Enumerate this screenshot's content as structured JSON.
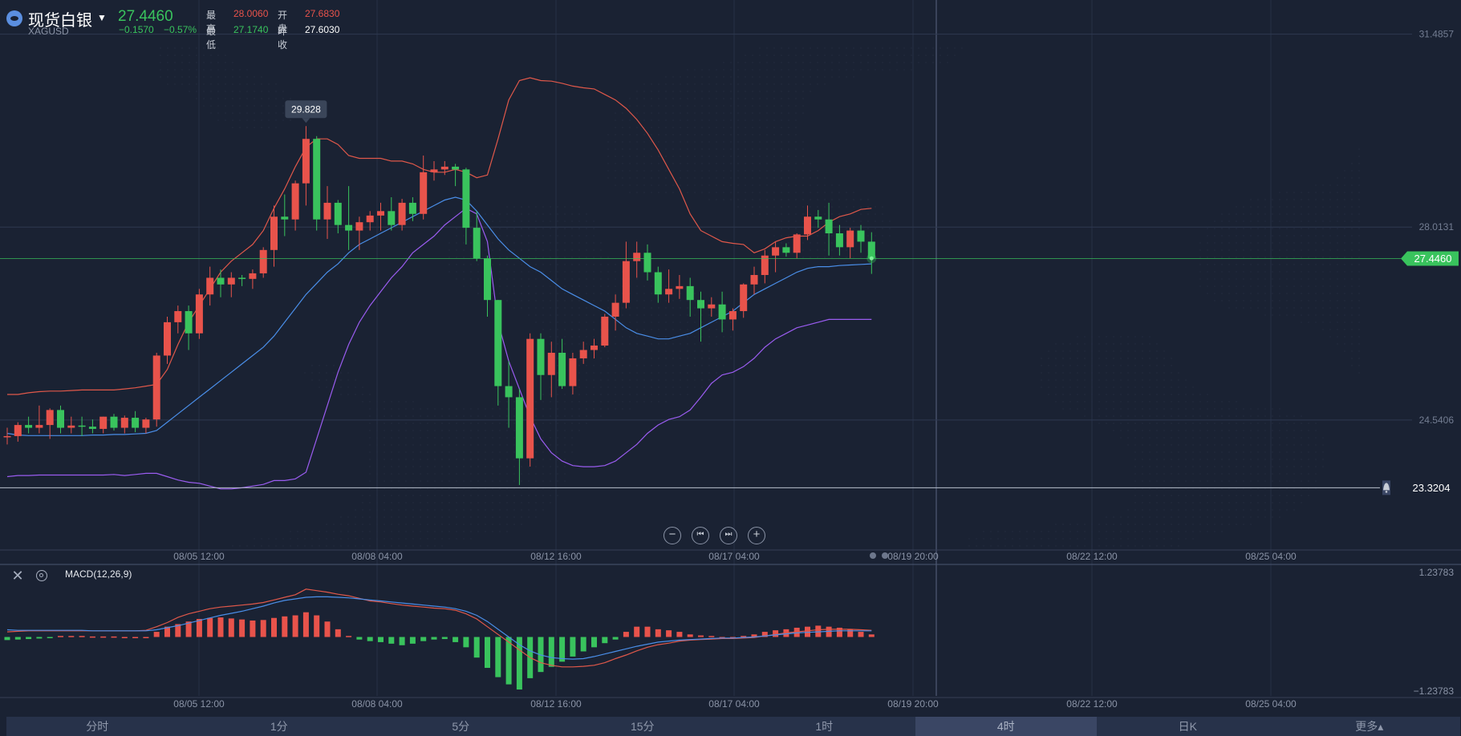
{
  "header": {
    "name": "现货白银",
    "code": "XAGUSD",
    "price": "27.4460",
    "change": "−0.1570",
    "change_pct": "−0.57%",
    "high_label": "最高",
    "high": "28.0060",
    "open_label": "开盘",
    "open": "27.6830",
    "low_label": "最低",
    "low": "27.1740",
    "prev_close_label": "昨收",
    "prev_close": "27.6030"
  },
  "price_axis": {
    "ticks": [
      "31.4857",
      "28.0131",
      "24.5406"
    ],
    "current_price_tag": "27.4460",
    "alert_line_value": "23.3204"
  },
  "peak_tooltip": "29.828",
  "time_axis": {
    "labels": [
      "08/05 12:00",
      "08/08 04:00",
      "08/12 16:00",
      "08/17 04:00",
      "08/19 20:00",
      "08/22 12:00",
      "08/25 04:00"
    ]
  },
  "macd": {
    "title": "MACD(12,26,9)",
    "axis_top": "1.23783",
    "axis_bottom": "−1.23783"
  },
  "controls": {
    "zoom_out_icon": "minus-circle-icon",
    "prev_icon": "skip-back-icon",
    "next_icon": "skip-forward-icon",
    "zoom_in_icon": "plus-circle-icon"
  },
  "tabs": [
    {
      "label": "分时",
      "active": false
    },
    {
      "label": "1分",
      "active": false
    },
    {
      "label": "5分",
      "active": false
    },
    {
      "label": "15分",
      "active": false
    },
    {
      "label": "1时",
      "active": false
    },
    {
      "label": "4时",
      "active": true
    },
    {
      "label": "日K",
      "active": false
    },
    {
      "label": "更多▴",
      "active": false
    }
  ],
  "colors": {
    "up": "#e8534b",
    "down": "#39c35d",
    "upper_band": "#e0584a",
    "middle_band": "#4a8ee8",
    "lower_band": "#9a5cf0",
    "background": "#1a2233"
  },
  "chart_data": {
    "type": "candlestick",
    "symbol": "XAGUSD",
    "interval": "4时",
    "x_labels": [
      "08/05 12:00",
      "08/08 04:00",
      "08/12 16:00",
      "08/17 04:00",
      "08/19 20:00",
      "08/22 12:00",
      "08/25 04:00"
    ],
    "y_range": [
      22.2,
      32.1
    ],
    "y_ticks": [
      31.4857,
      28.0131,
      24.5406
    ],
    "candles": [
      {
        "o": 24.23,
        "h": 24.4,
        "l": 24.1,
        "c": 24.25
      },
      {
        "o": 24.25,
        "h": 24.5,
        "l": 24.15,
        "c": 24.45
      },
      {
        "o": 24.45,
        "h": 24.6,
        "l": 24.3,
        "c": 24.4
      },
      {
        "o": 24.4,
        "h": 24.8,
        "l": 24.3,
        "c": 24.45
      },
      {
        "o": 24.45,
        "h": 24.75,
        "l": 24.2,
        "c": 24.72
      },
      {
        "o": 24.72,
        "h": 24.8,
        "l": 24.3,
        "c": 24.4
      },
      {
        "o": 24.4,
        "h": 24.6,
        "l": 24.3,
        "c": 24.44
      },
      {
        "o": 24.44,
        "h": 24.6,
        "l": 24.25,
        "c": 24.42
      },
      {
        "o": 24.42,
        "h": 24.55,
        "l": 24.3,
        "c": 24.38
      },
      {
        "o": 24.38,
        "h": 24.6,
        "l": 24.3,
        "c": 24.6
      },
      {
        "o": 24.6,
        "h": 24.65,
        "l": 24.35,
        "c": 24.4
      },
      {
        "o": 24.4,
        "h": 24.62,
        "l": 24.3,
        "c": 24.58
      },
      {
        "o": 24.58,
        "h": 24.7,
        "l": 24.32,
        "c": 24.4
      },
      {
        "o": 24.4,
        "h": 24.58,
        "l": 24.3,
        "c": 24.55
      },
      {
        "o": 24.55,
        "h": 25.75,
        "l": 24.42,
        "c": 25.7
      },
      {
        "o": 25.7,
        "h": 26.4,
        "l": 25.55,
        "c": 26.3
      },
      {
        "o": 26.3,
        "h": 26.6,
        "l": 26.1,
        "c": 26.5
      },
      {
        "o": 26.5,
        "h": 26.6,
        "l": 25.8,
        "c": 26.1
      },
      {
        "o": 26.1,
        "h": 26.9,
        "l": 26.0,
        "c": 26.8
      },
      {
        "o": 26.8,
        "h": 27.3,
        "l": 26.6,
        "c": 27.1
      },
      {
        "o": 27.1,
        "h": 27.25,
        "l": 26.75,
        "c": 26.98
      },
      {
        "o": 26.98,
        "h": 27.2,
        "l": 26.75,
        "c": 27.1
      },
      {
        "o": 27.1,
        "h": 27.15,
        "l": 26.95,
        "c": 27.08
      },
      {
        "o": 27.08,
        "h": 27.25,
        "l": 26.9,
        "c": 27.18
      },
      {
        "o": 27.18,
        "h": 27.65,
        "l": 27.1,
        "c": 27.6
      },
      {
        "o": 27.6,
        "h": 28.4,
        "l": 27.3,
        "c": 28.2
      },
      {
        "o": 28.2,
        "h": 28.6,
        "l": 27.85,
        "c": 28.15
      },
      {
        "o": 28.15,
        "h": 28.85,
        "l": 27.95,
        "c": 28.8
      },
      {
        "o": 28.8,
        "h": 29.83,
        "l": 28.4,
        "c": 29.6
      },
      {
        "o": 29.6,
        "h": 29.65,
        "l": 27.95,
        "c": 28.15
      },
      {
        "o": 28.15,
        "h": 28.75,
        "l": 27.8,
        "c": 28.45
      },
      {
        "o": 28.45,
        "h": 28.5,
        "l": 27.9,
        "c": 28.05
      },
      {
        "o": 28.05,
        "h": 28.75,
        "l": 27.6,
        "c": 27.95
      },
      {
        "o": 27.95,
        "h": 28.2,
        "l": 27.6,
        "c": 28.1
      },
      {
        "o": 28.1,
        "h": 28.3,
        "l": 27.95,
        "c": 28.22
      },
      {
        "o": 28.22,
        "h": 28.45,
        "l": 27.95,
        "c": 28.3
      },
      {
        "o": 28.3,
        "h": 28.55,
        "l": 27.95,
        "c": 28.05
      },
      {
        "o": 28.05,
        "h": 28.52,
        "l": 27.95,
        "c": 28.45
      },
      {
        "o": 28.45,
        "h": 28.55,
        "l": 28.12,
        "c": 28.25
      },
      {
        "o": 28.25,
        "h": 29.3,
        "l": 28.15,
        "c": 29.0
      },
      {
        "o": 29.0,
        "h": 29.2,
        "l": 28.85,
        "c": 29.05
      },
      {
        "o": 29.05,
        "h": 29.2,
        "l": 28.95,
        "c": 29.1
      },
      {
        "o": 29.1,
        "h": 29.15,
        "l": 28.75,
        "c": 29.05
      },
      {
        "o": 29.05,
        "h": 29.08,
        "l": 27.7,
        "c": 28.0
      },
      {
        "o": 28.0,
        "h": 28.3,
        "l": 27.4,
        "c": 27.45
      },
      {
        "o": 27.45,
        "h": 27.5,
        "l": 26.4,
        "c": 26.7
      },
      {
        "o": 26.7,
        "h": 26.7,
        "l": 24.8,
        "c": 25.15
      },
      {
        "o": 25.15,
        "h": 25.6,
        "l": 24.4,
        "c": 24.95
      },
      {
        "o": 24.95,
        "h": 25.1,
        "l": 23.37,
        "c": 23.85
      },
      {
        "o": 23.85,
        "h": 26.1,
        "l": 23.7,
        "c": 26.0
      },
      {
        "o": 26.0,
        "h": 26.1,
        "l": 24.9,
        "c": 25.35
      },
      {
        "o": 25.35,
        "h": 25.95,
        "l": 24.95,
        "c": 25.75
      },
      {
        "o": 25.75,
        "h": 26.0,
        "l": 25.1,
        "c": 25.15
      },
      {
        "o": 25.15,
        "h": 25.75,
        "l": 25.0,
        "c": 25.65
      },
      {
        "o": 25.65,
        "h": 25.95,
        "l": 25.55,
        "c": 25.8
      },
      {
        "o": 25.8,
        "h": 26.0,
        "l": 25.65,
        "c": 25.88
      },
      {
        "o": 25.88,
        "h": 26.45,
        "l": 25.85,
        "c": 26.4
      },
      {
        "o": 26.4,
        "h": 26.8,
        "l": 26.15,
        "c": 26.65
      },
      {
        "o": 26.65,
        "h": 27.75,
        "l": 26.55,
        "c": 27.4
      },
      {
        "o": 27.4,
        "h": 27.75,
        "l": 27.1,
        "c": 27.55
      },
      {
        "o": 27.55,
        "h": 27.7,
        "l": 27.05,
        "c": 27.2
      },
      {
        "o": 27.2,
        "h": 27.3,
        "l": 26.65,
        "c": 26.8
      },
      {
        "o": 26.8,
        "h": 27.25,
        "l": 26.65,
        "c": 26.9
      },
      {
        "o": 26.9,
        "h": 27.15,
        "l": 26.72,
        "c": 26.95
      },
      {
        "o": 26.95,
        "h": 27.1,
        "l": 26.4,
        "c": 26.7
      },
      {
        "o": 26.7,
        "h": 26.85,
        "l": 25.95,
        "c": 26.55
      },
      {
        "o": 26.55,
        "h": 26.75,
        "l": 26.4,
        "c": 26.62
      },
      {
        "o": 26.62,
        "h": 26.85,
        "l": 26.12,
        "c": 26.35
      },
      {
        "o": 26.35,
        "h": 26.55,
        "l": 26.15,
        "c": 26.5
      },
      {
        "o": 26.5,
        "h": 27.0,
        "l": 26.38,
        "c": 26.98
      },
      {
        "o": 26.98,
        "h": 27.3,
        "l": 26.8,
        "c": 27.15
      },
      {
        "o": 27.15,
        "h": 27.6,
        "l": 27.0,
        "c": 27.5
      },
      {
        "o": 27.5,
        "h": 27.75,
        "l": 27.2,
        "c": 27.65
      },
      {
        "o": 27.65,
        "h": 27.72,
        "l": 27.48,
        "c": 27.55
      },
      {
        "o": 27.55,
        "h": 27.9,
        "l": 27.45,
        "c": 27.88
      },
      {
        "o": 27.88,
        "h": 28.4,
        "l": 27.78,
        "c": 28.2
      },
      {
        "o": 28.2,
        "h": 28.32,
        "l": 28.0,
        "c": 28.15
      },
      {
        "o": 28.15,
        "h": 28.45,
        "l": 27.5,
        "c": 27.9
      },
      {
        "o": 27.9,
        "h": 28.05,
        "l": 27.5,
        "c": 27.65
      },
      {
        "o": 27.65,
        "h": 28.0,
        "l": 27.45,
        "c": 27.95
      },
      {
        "o": 27.95,
        "h": 28.05,
        "l": 27.55,
        "c": 27.75
      },
      {
        "o": 27.75,
        "h": 27.92,
        "l": 27.17,
        "c": 27.45
      }
    ],
    "bollinger": {
      "upper": [
        25.0,
        25.0,
        25.03,
        25.05,
        25.06,
        25.06,
        25.07,
        25.08,
        25.08,
        25.08,
        25.08,
        25.1,
        25.12,
        25.15,
        25.18,
        25.45,
        25.9,
        26.3,
        26.6,
        26.9,
        27.2,
        27.4,
        27.55,
        27.7,
        27.95,
        28.35,
        28.7,
        29.1,
        29.45,
        29.6,
        29.6,
        29.5,
        29.3,
        29.25,
        29.25,
        29.25,
        29.2,
        29.2,
        29.15,
        29.05,
        29.0,
        29.0,
        29.05,
        29.0,
        28.9,
        28.95,
        29.6,
        30.3,
        30.65,
        30.7,
        30.65,
        30.64,
        30.6,
        30.55,
        30.52,
        30.5,
        30.4,
        30.3,
        30.15,
        29.95,
        29.7,
        29.4,
        29.05,
        28.7,
        28.25,
        27.95,
        27.85,
        27.75,
        27.72,
        27.7,
        27.55,
        27.62,
        27.75,
        27.82,
        27.85,
        27.85,
        27.95,
        28.1,
        28.2,
        28.25,
        28.33,
        28.35
      ],
      "middle": [
        24.3,
        24.27,
        24.26,
        24.26,
        24.26,
        24.26,
        24.26,
        24.26,
        24.27,
        24.27,
        24.28,
        24.28,
        24.29,
        24.3,
        24.35,
        24.5,
        24.65,
        24.8,
        24.95,
        25.1,
        25.25,
        25.4,
        25.55,
        25.7,
        25.85,
        26.05,
        26.3,
        26.55,
        26.8,
        27.0,
        27.2,
        27.35,
        27.55,
        27.7,
        27.8,
        27.9,
        28.0,
        28.1,
        28.2,
        28.3,
        28.4,
        28.5,
        28.55,
        28.5,
        28.3,
        28.05,
        27.8,
        27.6,
        27.45,
        27.3,
        27.2,
        27.05,
        26.9,
        26.8,
        26.7,
        26.6,
        26.5,
        26.35,
        26.2,
        26.1,
        26.05,
        26.0,
        26.0,
        26.05,
        26.1,
        26.2,
        26.3,
        26.4,
        26.5,
        26.65,
        26.8,
        26.9,
        27.0,
        27.1,
        27.2,
        27.27,
        27.3,
        27.3,
        27.32,
        27.33,
        27.34,
        27.35
      ],
      "lower": [
        23.52,
        23.54,
        23.54,
        23.55,
        23.55,
        23.55,
        23.55,
        23.55,
        23.55,
        23.55,
        23.56,
        23.54,
        23.56,
        23.58,
        23.58,
        23.52,
        23.46,
        23.42,
        23.4,
        23.35,
        23.3,
        23.3,
        23.32,
        23.35,
        23.38,
        23.45,
        23.45,
        23.48,
        23.6,
        24.2,
        24.8,
        25.4,
        25.9,
        26.3,
        26.6,
        26.85,
        27.1,
        27.3,
        27.55,
        27.7,
        27.85,
        28.05,
        28.2,
        28.35,
        28.25,
        27.75,
        26.3,
        25.6,
        25.1,
        24.6,
        24.2,
        23.95,
        23.8,
        23.72,
        23.7,
        23.7,
        23.72,
        23.8,
        23.95,
        24.1,
        24.3,
        24.45,
        24.55,
        24.6,
        24.72,
        24.95,
        25.2,
        25.35,
        25.4,
        25.5,
        25.65,
        25.85,
        26.0,
        26.1,
        26.2,
        26.25,
        26.3,
        26.35,
        26.35,
        26.35,
        26.35,
        26.35
      ]
    },
    "macd": {
      "y_range": [
        -1.23783,
        1.23783
      ],
      "histogram": [
        -0.06,
        -0.05,
        -0.04,
        -0.03,
        -0.02,
        0.02,
        0.02,
        0.02,
        0.01,
        0.01,
        0.01,
        0.0,
        0.0,
        0.0,
        0.1,
        0.2,
        0.25,
        0.3,
        0.35,
        0.37,
        0.38,
        0.36,
        0.34,
        0.32,
        0.33,
        0.37,
        0.4,
        0.42,
        0.48,
        0.42,
        0.3,
        0.15,
        0.02,
        -0.05,
        -0.08,
        -0.1,
        -0.13,
        -0.16,
        -0.13,
        -0.08,
        -0.05,
        -0.04,
        -0.1,
        -0.2,
        -0.4,
        -0.6,
        -0.78,
        -0.92,
        -1.02,
        -0.8,
        -0.68,
        -0.58,
        -0.48,
        -0.38,
        -0.28,
        -0.2,
        -0.12,
        -0.05,
        0.1,
        0.2,
        0.2,
        0.15,
        0.13,
        0.1,
        0.05,
        0.03,
        0.02,
        0.0,
        0.0,
        0.02,
        0.05,
        0.1,
        0.13,
        0.15,
        0.18,
        0.2,
        0.22,
        0.2,
        0.18,
        0.15,
        0.1,
        0.05
      ],
      "dif": [
        0.1,
        0.11,
        0.12,
        0.12,
        0.12,
        0.12,
        0.12,
        0.12,
        0.12,
        0.12,
        0.12,
        0.12,
        0.12,
        0.13,
        0.2,
        0.28,
        0.38,
        0.45,
        0.5,
        0.55,
        0.58,
        0.6,
        0.62,
        0.64,
        0.67,
        0.72,
        0.77,
        0.82,
        0.93,
        0.9,
        0.87,
        0.83,
        0.8,
        0.75,
        0.7,
        0.68,
        0.65,
        0.62,
        0.6,
        0.58,
        0.56,
        0.55,
        0.52,
        0.45,
        0.35,
        0.2,
        0.05,
        -0.1,
        -0.25,
        -0.4,
        -0.5,
        -0.55,
        -0.58,
        -0.58,
        -0.57,
        -0.55,
        -0.5,
        -0.42,
        -0.35,
        -0.27,
        -0.2,
        -0.15,
        -0.12,
        -0.08,
        -0.06,
        -0.05,
        -0.04,
        -0.03,
        -0.03,
        -0.02,
        -0.01,
        0.02,
        0.05,
        0.08,
        0.1,
        0.12,
        0.14,
        0.15,
        0.15,
        0.15,
        0.14,
        0.13
      ],
      "dea": [
        0.14,
        0.13,
        0.13,
        0.13,
        0.13,
        0.13,
        0.13,
        0.13,
        0.12,
        0.12,
        0.12,
        0.12,
        0.12,
        0.12,
        0.14,
        0.18,
        0.22,
        0.27,
        0.32,
        0.37,
        0.42,
        0.46,
        0.5,
        0.55,
        0.6,
        0.66,
        0.71,
        0.74,
        0.77,
        0.78,
        0.78,
        0.77,
        0.76,
        0.74,
        0.72,
        0.7,
        0.68,
        0.66,
        0.64,
        0.62,
        0.6,
        0.58,
        0.55,
        0.5,
        0.42,
        0.3,
        0.15,
        0.0,
        -0.15,
        -0.27,
        -0.35,
        -0.4,
        -0.42,
        -0.43,
        -0.42,
        -0.38,
        -0.33,
        -0.28,
        -0.23,
        -0.18,
        -0.14,
        -0.1,
        -0.08,
        -0.06,
        -0.05,
        -0.04,
        -0.03,
        -0.02,
        -0.02,
        -0.01,
        0.0,
        0.02,
        0.04,
        0.06,
        0.08,
        0.09,
        0.1,
        0.11,
        0.12,
        0.12,
        0.12,
        0.12
      ]
    }
  }
}
